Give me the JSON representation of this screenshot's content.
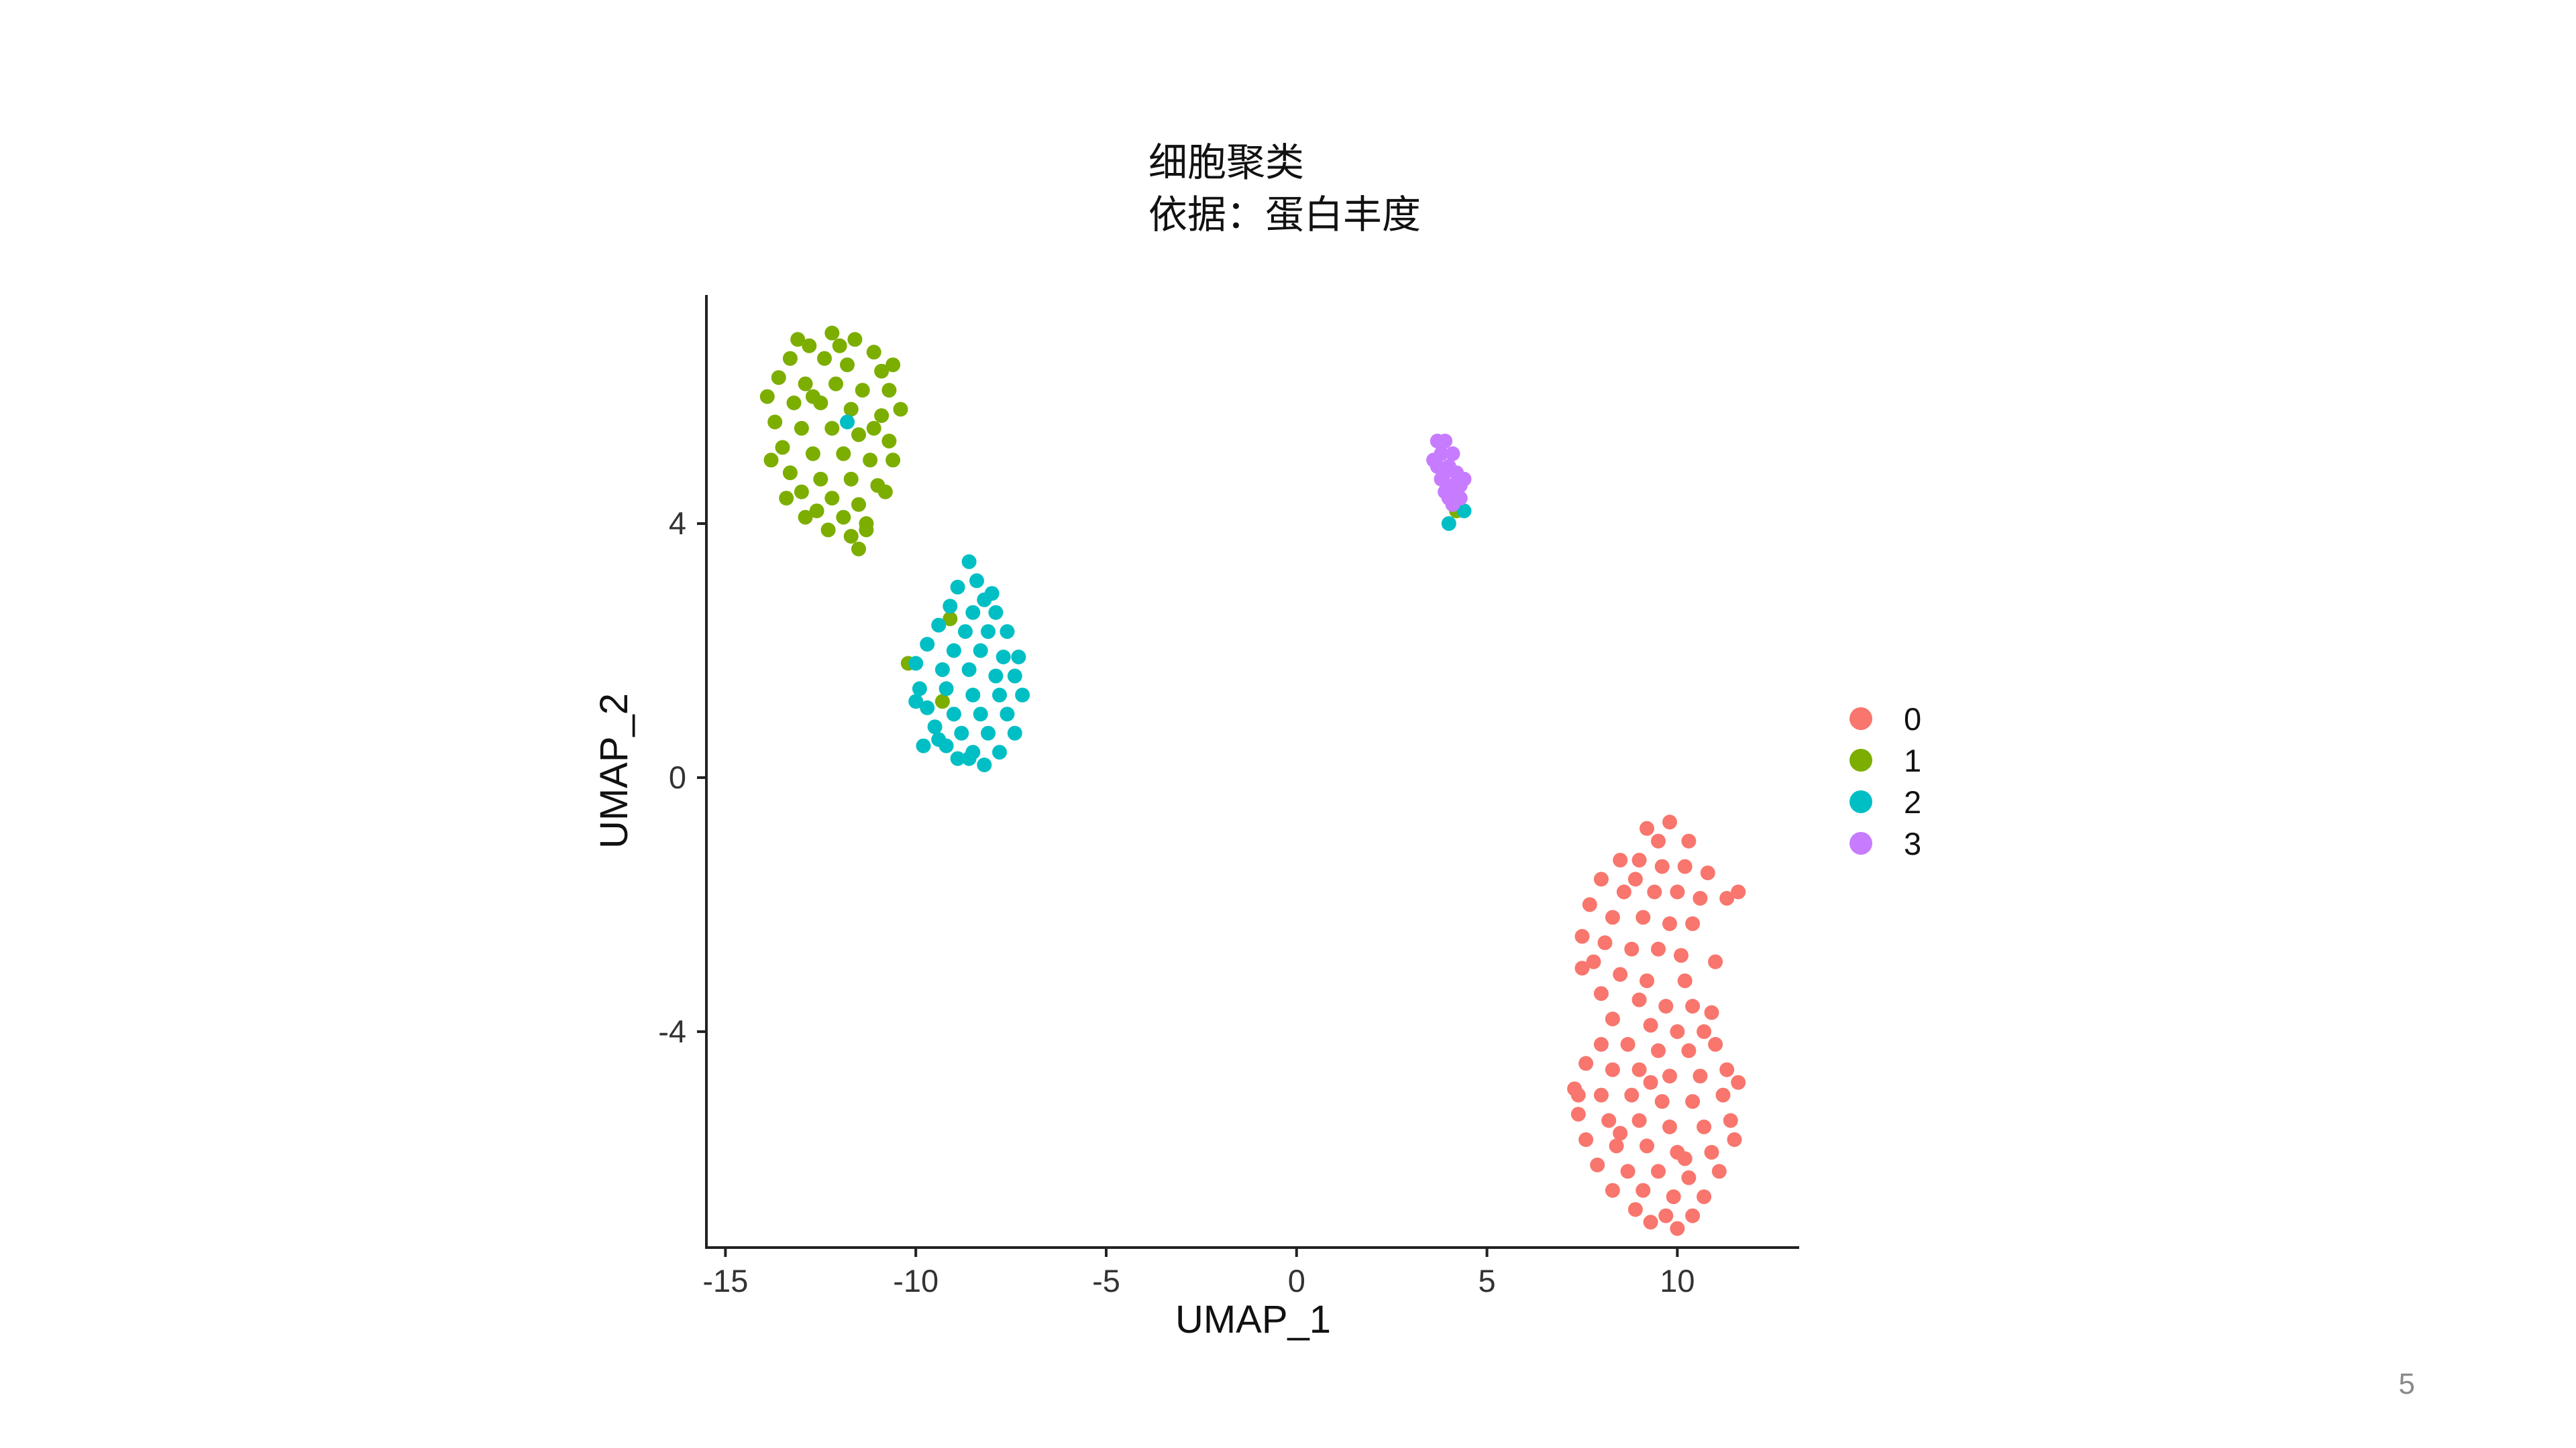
{
  "slide": {
    "page_number": "5"
  },
  "chart_data": {
    "type": "scatter",
    "title": "细胞聚类",
    "subtitle": "依据：蛋白丰度",
    "xlabel": "UMAP_1",
    "ylabel": "UMAP_2",
    "xlim": [
      -15.5,
      13.2
    ],
    "ylim": [
      -7.4,
      7.6
    ],
    "x_ticks": [
      -15,
      -10,
      -5,
      0,
      5,
      10
    ],
    "x_tick_labels": [
      "-15",
      "-10",
      "-5",
      "0",
      "5",
      "10"
    ],
    "y_ticks": [
      4,
      0,
      -4
    ],
    "y_tick_labels": [
      "4",
      "0",
      "-4"
    ],
    "grid": false,
    "legend_position": "right",
    "series": [
      {
        "name": "0",
        "color": "#F8766D",
        "points": [
          [
            9.2,
            -0.8
          ],
          [
            9.8,
            -0.7
          ],
          [
            9.5,
            -1.0
          ],
          [
            10.3,
            -1.0
          ],
          [
            8.5,
            -1.3
          ],
          [
            9.0,
            -1.3
          ],
          [
            9.6,
            -1.4
          ],
          [
            10.2,
            -1.4
          ],
          [
            10.8,
            -1.5
          ],
          [
            8.0,
            -1.6
          ],
          [
            8.6,
            -1.8
          ],
          [
            9.4,
            -1.8
          ],
          [
            10.0,
            -1.8
          ],
          [
            10.6,
            -1.9
          ],
          [
            11.3,
            -1.9
          ],
          [
            11.6,
            -1.8
          ],
          [
            7.7,
            -2.0
          ],
          [
            8.3,
            -2.2
          ],
          [
            9.1,
            -2.2
          ],
          [
            9.8,
            -2.3
          ],
          [
            10.4,
            -2.3
          ],
          [
            7.5,
            -2.5
          ],
          [
            8.1,
            -2.6
          ],
          [
            8.8,
            -2.7
          ],
          [
            9.5,
            -2.7
          ],
          [
            10.1,
            -2.8
          ],
          [
            7.8,
            -2.9
          ],
          [
            8.5,
            -3.1
          ],
          [
            9.2,
            -3.2
          ],
          [
            10.2,
            -3.2
          ],
          [
            8.0,
            -3.4
          ],
          [
            9.0,
            -3.5
          ],
          [
            9.7,
            -3.6
          ],
          [
            10.4,
            -3.6
          ],
          [
            8.3,
            -3.8
          ],
          [
            9.3,
            -3.9
          ],
          [
            10.0,
            -4.0
          ],
          [
            10.7,
            -4.0
          ],
          [
            8.0,
            -4.2
          ],
          [
            8.7,
            -4.2
          ],
          [
            9.5,
            -4.3
          ],
          [
            10.3,
            -4.3
          ],
          [
            11.0,
            -4.2
          ],
          [
            7.6,
            -4.5
          ],
          [
            8.3,
            -4.6
          ],
          [
            9.0,
            -4.6
          ],
          [
            9.8,
            -4.7
          ],
          [
            10.6,
            -4.7
          ],
          [
            11.3,
            -4.6
          ],
          [
            7.3,
            -4.9
          ],
          [
            8.0,
            -5.0
          ],
          [
            8.8,
            -5.0
          ],
          [
            9.6,
            -5.1
          ],
          [
            10.4,
            -5.1
          ],
          [
            11.2,
            -5.0
          ],
          [
            11.6,
            -4.8
          ],
          [
            7.4,
            -5.3
          ],
          [
            8.2,
            -5.4
          ],
          [
            9.0,
            -5.4
          ],
          [
            9.8,
            -5.5
          ],
          [
            10.7,
            -5.5
          ],
          [
            11.4,
            -5.4
          ],
          [
            7.6,
            -5.7
          ],
          [
            8.4,
            -5.8
          ],
          [
            9.2,
            -5.8
          ],
          [
            10.0,
            -5.9
          ],
          [
            10.9,
            -5.9
          ],
          [
            11.5,
            -5.7
          ],
          [
            7.9,
            -6.1
          ],
          [
            8.7,
            -6.2
          ],
          [
            9.5,
            -6.2
          ],
          [
            10.3,
            -6.3
          ],
          [
            11.1,
            -6.2
          ],
          [
            8.3,
            -6.5
          ],
          [
            9.1,
            -6.5
          ],
          [
            9.9,
            -6.6
          ],
          [
            10.7,
            -6.6
          ],
          [
            8.9,
            -6.8
          ],
          [
            9.7,
            -6.9
          ],
          [
            10.4,
            -6.9
          ],
          [
            9.3,
            -7.0
          ],
          [
            10.0,
            -7.1
          ],
          [
            7.4,
            -5.0
          ],
          [
            11.0,
            -2.9
          ],
          [
            10.9,
            -3.7
          ],
          [
            7.5,
            -3.0
          ],
          [
            8.9,
            -1.6
          ],
          [
            9.3,
            -4.8
          ],
          [
            8.5,
            -5.6
          ],
          [
            10.2,
            -6.0
          ]
        ]
      },
      {
        "name": "1",
        "color": "#7CAE00",
        "points": [
          [
            -12.2,
            7.0
          ],
          [
            -11.6,
            6.9
          ],
          [
            -12.8,
            6.8
          ],
          [
            -11.1,
            6.7
          ],
          [
            -13.3,
            6.6
          ],
          [
            -12.4,
            6.6
          ],
          [
            -11.8,
            6.5
          ],
          [
            -10.9,
            6.4
          ],
          [
            -13.6,
            6.3
          ],
          [
            -12.9,
            6.2
          ],
          [
            -12.1,
            6.2
          ],
          [
            -11.4,
            6.1
          ],
          [
            -10.7,
            6.1
          ],
          [
            -13.9,
            6.0
          ],
          [
            -13.2,
            5.9
          ],
          [
            -12.5,
            5.9
          ],
          [
            -11.7,
            5.8
          ],
          [
            -10.9,
            5.7
          ],
          [
            -10.4,
            5.8
          ],
          [
            -13.7,
            5.6
          ],
          [
            -13.0,
            5.5
          ],
          [
            -12.2,
            5.5
          ],
          [
            -11.5,
            5.4
          ],
          [
            -10.7,
            5.3
          ],
          [
            -13.5,
            5.2
          ],
          [
            -12.7,
            5.1
          ],
          [
            -11.9,
            5.1
          ],
          [
            -11.2,
            5.0
          ],
          [
            -10.6,
            5.0
          ],
          [
            -13.3,
            4.8
          ],
          [
            -12.5,
            4.7
          ],
          [
            -11.7,
            4.7
          ],
          [
            -11.0,
            4.6
          ],
          [
            -13.0,
            4.5
          ],
          [
            -12.2,
            4.4
          ],
          [
            -11.5,
            4.3
          ],
          [
            -12.6,
            4.2
          ],
          [
            -11.9,
            4.1
          ],
          [
            -11.3,
            4.0
          ],
          [
            -12.3,
            3.9
          ],
          [
            -11.7,
            3.8
          ],
          [
            -11.5,
            3.6
          ],
          [
            -13.8,
            5.0
          ],
          [
            -12.0,
            6.8
          ],
          [
            -10.6,
            6.5
          ],
          [
            -13.4,
            4.4
          ],
          [
            -12.9,
            4.1
          ],
          [
            -11.3,
            3.9
          ],
          [
            -10.8,
            4.5
          ],
          [
            -12.7,
            6.0
          ],
          [
            -11.1,
            5.5
          ],
          [
            -13.1,
            6.9
          ],
          [
            -9.1,
            2.5
          ],
          [
            -10.2,
            1.8
          ],
          [
            -9.3,
            1.2
          ],
          [
            4.2,
            4.2
          ]
        ]
      },
      {
        "name": "2",
        "color": "#00BFC4",
        "points": [
          [
            -8.6,
            3.4
          ],
          [
            -8.4,
            3.1
          ],
          [
            -8.9,
            3.0
          ],
          [
            -8.2,
            2.8
          ],
          [
            -9.1,
            2.7
          ],
          [
            -8.5,
            2.6
          ],
          [
            -7.9,
            2.6
          ],
          [
            -9.4,
            2.4
          ],
          [
            -8.7,
            2.3
          ],
          [
            -8.1,
            2.3
          ],
          [
            -7.6,
            2.3
          ],
          [
            -9.7,
            2.1
          ],
          [
            -9.0,
            2.0
          ],
          [
            -8.3,
            2.0
          ],
          [
            -7.7,
            1.9
          ],
          [
            -10.0,
            1.8
          ],
          [
            -9.3,
            1.7
          ],
          [
            -8.6,
            1.7
          ],
          [
            -7.9,
            1.6
          ],
          [
            -7.4,
            1.6
          ],
          [
            -9.9,
            1.4
          ],
          [
            -9.2,
            1.4
          ],
          [
            -8.5,
            1.3
          ],
          [
            -7.8,
            1.3
          ],
          [
            -7.2,
            1.3
          ],
          [
            -9.7,
            1.1
          ],
          [
            -9.0,
            1.0
          ],
          [
            -8.3,
            1.0
          ],
          [
            -7.6,
            1.0
          ],
          [
            -9.5,
            0.8
          ],
          [
            -8.8,
            0.7
          ],
          [
            -8.1,
            0.7
          ],
          [
            -7.4,
            0.7
          ],
          [
            -9.8,
            0.5
          ],
          [
            -9.2,
            0.5
          ],
          [
            -8.5,
            0.4
          ],
          [
            -7.8,
            0.4
          ],
          [
            -8.9,
            0.3
          ],
          [
            -8.2,
            0.2
          ],
          [
            -10.0,
            1.2
          ],
          [
            -7.3,
            1.9
          ],
          [
            -8.0,
            2.9
          ],
          [
            -9.4,
            0.6
          ],
          [
            -8.6,
            0.3
          ],
          [
            -11.8,
            5.6
          ],
          [
            4.0,
            4.0
          ],
          [
            4.4,
            4.2
          ]
        ]
      },
      {
        "name": "3",
        "color": "#C77CFF",
        "points": [
          [
            3.7,
            5.3
          ],
          [
            3.9,
            5.3
          ],
          [
            3.8,
            5.1
          ],
          [
            4.1,
            5.1
          ],
          [
            3.7,
            4.9
          ],
          [
            4.0,
            4.9
          ],
          [
            3.9,
            4.8
          ],
          [
            4.2,
            4.8
          ],
          [
            3.8,
            4.7
          ],
          [
            4.1,
            4.6
          ],
          [
            4.3,
            4.6
          ],
          [
            3.9,
            4.5
          ],
          [
            4.2,
            4.5
          ],
          [
            4.0,
            4.4
          ],
          [
            4.3,
            4.4
          ],
          [
            4.1,
            4.3
          ],
          [
            3.6,
            5.0
          ],
          [
            4.4,
            4.7
          ]
        ]
      }
    ]
  }
}
